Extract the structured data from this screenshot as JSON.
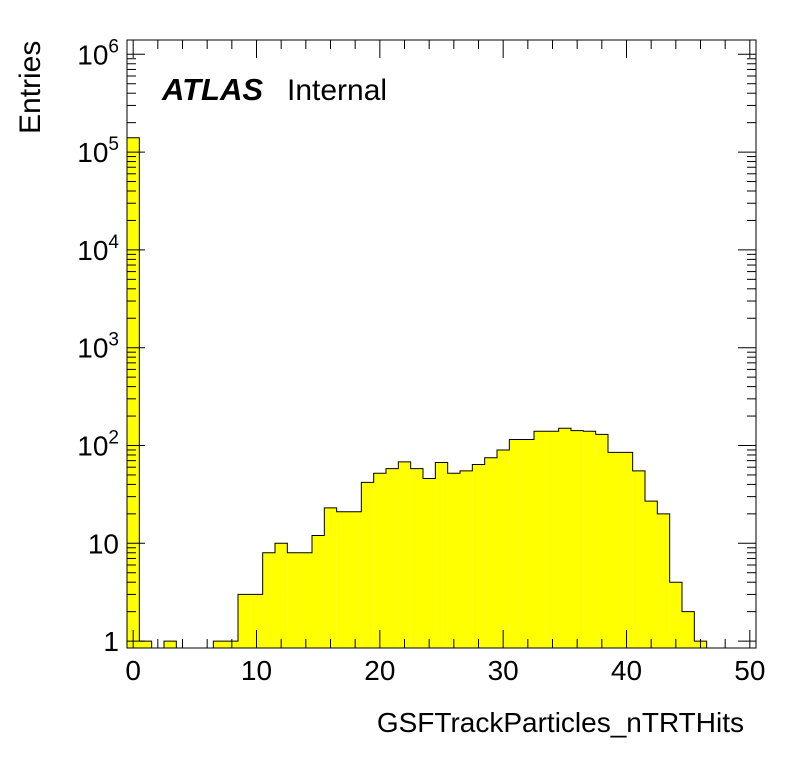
{
  "chart_data": {
    "type": "bar",
    "subtype": "histogram",
    "xlabel": "GSFTrackParticles_nTRTHits",
    "ylabel": "Entries",
    "xlim": [
      -0.5,
      50.5
    ],
    "ylim": [
      0.85,
      1400000
    ],
    "yscale": "log",
    "xticks": [
      0,
      10,
      20,
      30,
      40,
      50
    ],
    "yticks": [
      {
        "value": 1,
        "base": "1",
        "exp": ""
      },
      {
        "value": 10,
        "base": "10",
        "exp": ""
      },
      {
        "value": 100,
        "base": "10",
        "exp": "2"
      },
      {
        "value": 1000,
        "base": "10",
        "exp": "3"
      },
      {
        "value": 10000,
        "base": "10",
        "exp": "4"
      },
      {
        "value": 100000,
        "base": "10",
        "exp": "5"
      },
      {
        "value": 1000000,
        "base": "10",
        "exp": "6"
      }
    ],
    "bin_width": 1,
    "x": [
      0,
      1,
      2,
      3,
      4,
      5,
      6,
      7,
      8,
      9,
      10,
      11,
      12,
      13,
      14,
      15,
      16,
      17,
      18,
      19,
      20,
      21,
      22,
      23,
      24,
      25,
      26,
      27,
      28,
      29,
      30,
      31,
      32,
      33,
      34,
      35,
      36,
      37,
      38,
      39,
      40,
      41,
      42,
      43,
      44,
      45,
      46,
      47,
      48,
      49,
      50
    ],
    "values": [
      140000,
      1,
      0,
      1,
      0,
      0,
      0,
      1,
      1,
      3,
      3,
      8,
      10,
      8,
      8,
      12,
      23,
      21,
      21,
      42,
      52,
      58,
      68,
      58,
      46,
      67,
      52,
      55,
      64,
      75,
      90,
      115,
      115,
      140,
      140,
      150,
      142,
      140,
      130,
      85,
      85,
      55,
      27,
      20,
      4,
      2,
      1,
      0,
      0,
      0,
      0
    ],
    "fill_color": "#ffff00",
    "line_color": "#000000",
    "grid": false,
    "annotations": [
      {
        "text": "ATLAS",
        "style": "bold-italic"
      },
      {
        "text": "Internal",
        "style": "normal"
      }
    ]
  }
}
